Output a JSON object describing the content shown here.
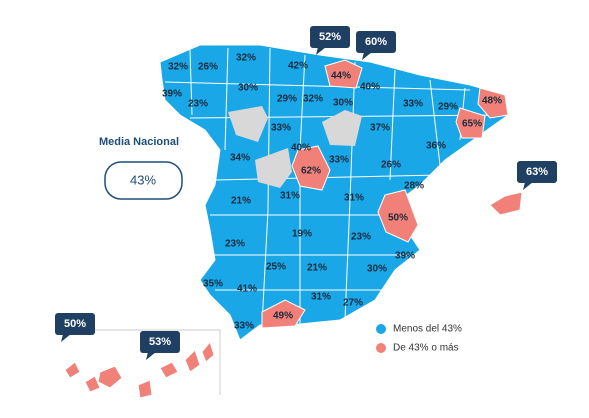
{
  "media": {
    "title": "Media Nacional",
    "value": "43%"
  },
  "legend": [
    {
      "label": "Menos del 43%",
      "color": "#1aa7e8"
    },
    {
      "label": "De 43% o más",
      "color": "#f08078"
    }
  ],
  "provinces": [
    "32%",
    "26%",
    "32%",
    "42%",
    "44%",
    "39%",
    "23%",
    "30%",
    "29%",
    "32%",
    "30%",
    "40%",
    "33%",
    "29%",
    "48%",
    "65%",
    "33%",
    "37%",
    "36%",
    "40%",
    "34%",
    "33%",
    "26%",
    "62%",
    "28%",
    "21%",
    "31%",
    "31%",
    "50%",
    "19%",
    "23%",
    "23%",
    "39%",
    "25%",
    "21%",
    "30%",
    "35%",
    "41%",
    "31%",
    "27%",
    "49%",
    "33%"
  ],
  "callouts": [
    "52%",
    "60%",
    "63%",
    "50%",
    "53%"
  ]
}
